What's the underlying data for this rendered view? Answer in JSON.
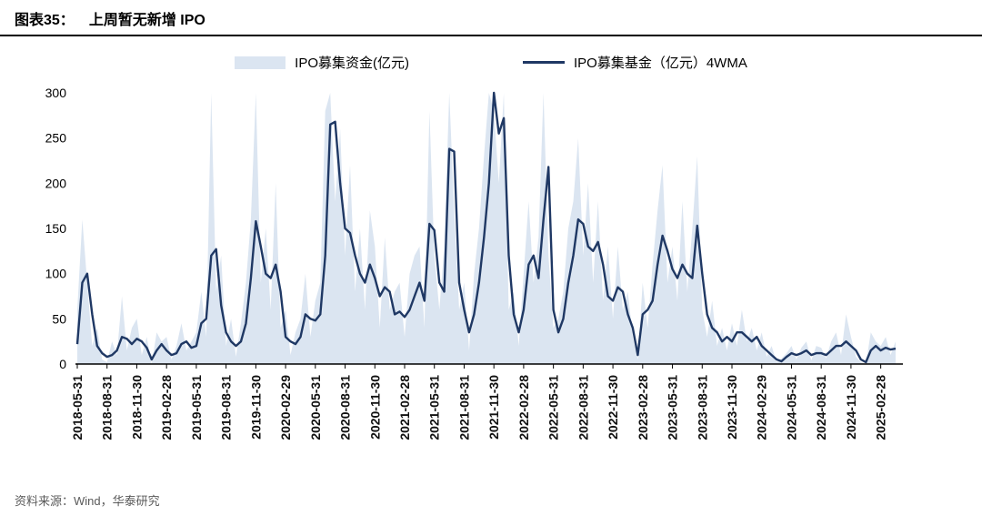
{
  "header": {
    "figure_label": "图表35：",
    "title": "上周暂无新增 IPO"
  },
  "footer": {
    "source": "资料来源：Wind，华泰研究"
  },
  "legend": {
    "area_label": "IPO募集资金(亿元)",
    "line_label": "IPO募集基金（亿元）4WMA"
  },
  "chart_data": {
    "type": "area+line",
    "title": "上周暂无新增 IPO",
    "xlabel": "",
    "ylabel": "",
    "ylim": [
      0,
      300
    ],
    "y_ticks": [
      0,
      50,
      100,
      150,
      200,
      250,
      300
    ],
    "grid": false,
    "legend_position": "top",
    "samples_per_tick": 6,
    "x_tick_labels": [
      "2018-05-31",
      "2018-08-31",
      "2018-11-30",
      "2019-02-28",
      "2019-05-31",
      "2019-08-31",
      "2019-11-30",
      "2020-02-29",
      "2020-05-31",
      "2020-08-31",
      "2020-11-30",
      "2021-02-28",
      "2021-05-31",
      "2021-08-31",
      "2021-11-30",
      "2022-02-28",
      "2022-05-31",
      "2022-08-31",
      "2022-11-30",
      "2023-02-28",
      "2023-05-31",
      "2023-08-31",
      "2023-11-30",
      "2024-02-29",
      "2024-05-31",
      "2024-08-31",
      "2024-11-30",
      "2025-02-28"
    ],
    "series": [
      {
        "name": "IPO募集资金(亿元)",
        "type": "area",
        "color": "#dbe5f1",
        "values": [
          60,
          160,
          90,
          20,
          40,
          5,
          2,
          25,
          10,
          75,
          15,
          40,
          50,
          10,
          30,
          0,
          35,
          25,
          30,
          5,
          20,
          45,
          15,
          25,
          35,
          80,
          30,
          300,
          80,
          120,
          20,
          50,
          8,
          45,
          90,
          160,
          300,
          90,
          150,
          60,
          200,
          40,
          60,
          10,
          35,
          50,
          100,
          30,
          70,
          90,
          280,
          300,
          180,
          260,
          120,
          220,
          80,
          150,
          60,
          170,
          130,
          40,
          140,
          60,
          80,
          90,
          30,
          100,
          120,
          130,
          40,
          280,
          120,
          60,
          130,
          300,
          170,
          60,
          90,
          15,
          100,
          150,
          230,
          300,
          280,
          200,
          300,
          60,
          80,
          20,
          100,
          180,
          90,
          140,
          300,
          120,
          40,
          50,
          80,
          150,
          180,
          250,
          120,
          200,
          90,
          180,
          70,
          130,
          50,
          130,
          60,
          80,
          30,
          5,
          90,
          40,
          110,
          170,
          220,
          90,
          130,
          70,
          180,
          80,
          150,
          230,
          60,
          30,
          70,
          20,
          40,
          15,
          45,
          20,
          60,
          25,
          40,
          15,
          35,
          8,
          20,
          2,
          6,
          12,
          20,
          5,
          18,
          25,
          4,
          20,
          18,
          6,
          25,
          35,
          10,
          55,
          30,
          8,
          2,
          0,
          35,
          25,
          20,
          30,
          10,
          25
        ]
      },
      {
        "name": "IPO募集基金（亿元）4WMA",
        "type": "line",
        "color": "#1f3864",
        "values": [
          22,
          90,
          100,
          55,
          20,
          12,
          8,
          10,
          15,
          30,
          28,
          22,
          28,
          25,
          18,
          5,
          15,
          22,
          15,
          10,
          12,
          22,
          25,
          18,
          20,
          45,
          50,
          120,
          127,
          65,
          35,
          25,
          20,
          25,
          45,
          95,
          158,
          130,
          100,
          95,
          110,
          80,
          30,
          25,
          22,
          30,
          55,
          50,
          48,
          55,
          120,
          265,
          268,
          200,
          150,
          145,
          120,
          100,
          90,
          110,
          95,
          75,
          85,
          80,
          55,
          58,
          52,
          60,
          75,
          90,
          70,
          155,
          148,
          90,
          80,
          238,
          235,
          90,
          60,
          35,
          55,
          90,
          140,
          200,
          300,
          255,
          272,
          120,
          55,
          35,
          60,
          110,
          120,
          95,
          160,
          218,
          60,
          35,
          50,
          90,
          120,
          160,
          155,
          130,
          125,
          135,
          110,
          75,
          70,
          85,
          80,
          55,
          40,
          10,
          55,
          60,
          70,
          110,
          142,
          125,
          105,
          95,
          110,
          100,
          95,
          153,
          100,
          55,
          40,
          35,
          25,
          30,
          25,
          35,
          35,
          30,
          25,
          30,
          20,
          15,
          10,
          5,
          3,
          8,
          12,
          10,
          12,
          15,
          10,
          12,
          12,
          10,
          15,
          20,
          20,
          25,
          20,
          15,
          5,
          2,
          15,
          20,
          15,
          18,
          16,
          17
        ]
      }
    ]
  }
}
